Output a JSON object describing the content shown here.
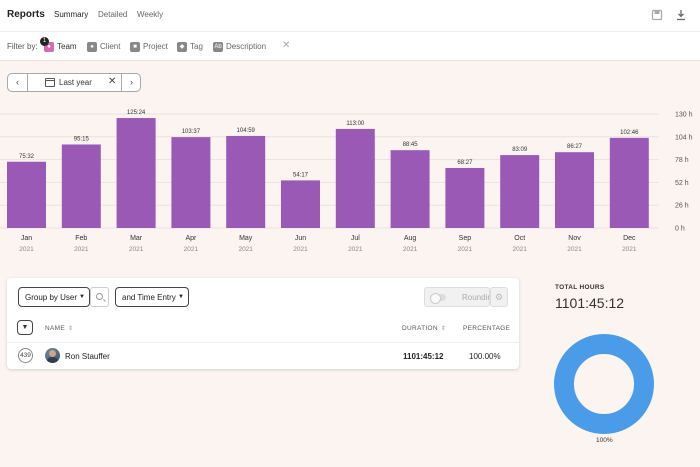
{
  "header": {
    "title": "Reports",
    "tabs": [
      {
        "label": "Summary",
        "active": true
      },
      {
        "label": "Detailed",
        "active": false
      },
      {
        "label": "Weekly",
        "active": false
      }
    ],
    "actions": [
      {
        "icon": "save-icon"
      },
      {
        "icon": "download-icon"
      }
    ]
  },
  "filters": {
    "label": "Filter by:",
    "items": [
      {
        "label": "Team",
        "icon": "team-icon",
        "badge": "1",
        "active": true
      },
      {
        "label": "Client",
        "icon": "client-icon"
      },
      {
        "label": "Project",
        "icon": "project-icon"
      },
      {
        "label": "Tag",
        "icon": "tag-icon"
      },
      {
        "label": "Description",
        "icon": "description-icon",
        "icon_text": "Ab"
      }
    ],
    "clear_icon": "close-icon"
  },
  "date_range": {
    "label": "Last year",
    "icon": "calendar-icon"
  },
  "chart_data": {
    "type": "bar",
    "categories": [
      "Jan",
      "Feb",
      "Mar",
      "Apr",
      "May",
      "Jun",
      "Jul",
      "Aug",
      "Sep",
      "Oct",
      "Nov",
      "Dec"
    ],
    "category_sublabels": [
      "2021",
      "2021",
      "2021",
      "2021",
      "2021",
      "2021",
      "2021",
      "2021",
      "2021",
      "2021",
      "2021",
      "2021"
    ],
    "values": [
      75.53,
      95.25,
      125.4,
      103.62,
      104.98,
      54.28,
      113.0,
      88.75,
      68.45,
      83.15,
      86.45,
      102.77
    ],
    "value_labels": [
      "75:32",
      "95:15",
      "125:24",
      "103:37",
      "104:59",
      "54:17",
      "113:00",
      "88:45",
      "68:27",
      "83:09",
      "86:27",
      "102:46"
    ],
    "y_ticks": [
      "130 h",
      "104 h",
      "78 h",
      "52 h",
      "26 h",
      "0 h"
    ],
    "y_tick_values": [
      130,
      104,
      78,
      52,
      26,
      0
    ],
    "ylim": [
      0,
      130
    ],
    "grid": true,
    "bar_color": "#9b59b6"
  },
  "table": {
    "group_by": "Group by User",
    "secondary_group": "and Time Entry",
    "rounding_label": "Rounding",
    "columns": {
      "name": "NAME",
      "duration": "DURATION",
      "percentage": "PERCENTAGE"
    },
    "rows": [
      {
        "count": "439",
        "name": "Ron Stauffer",
        "duration": "1101:45:12",
        "percentage": "100.00%"
      }
    ]
  },
  "totals": {
    "label": "TOTAL HOURS",
    "value": "1101:45:12",
    "donut_label": "100%",
    "donut_fraction": 1.0,
    "donut_color": "#4a9ce8"
  }
}
